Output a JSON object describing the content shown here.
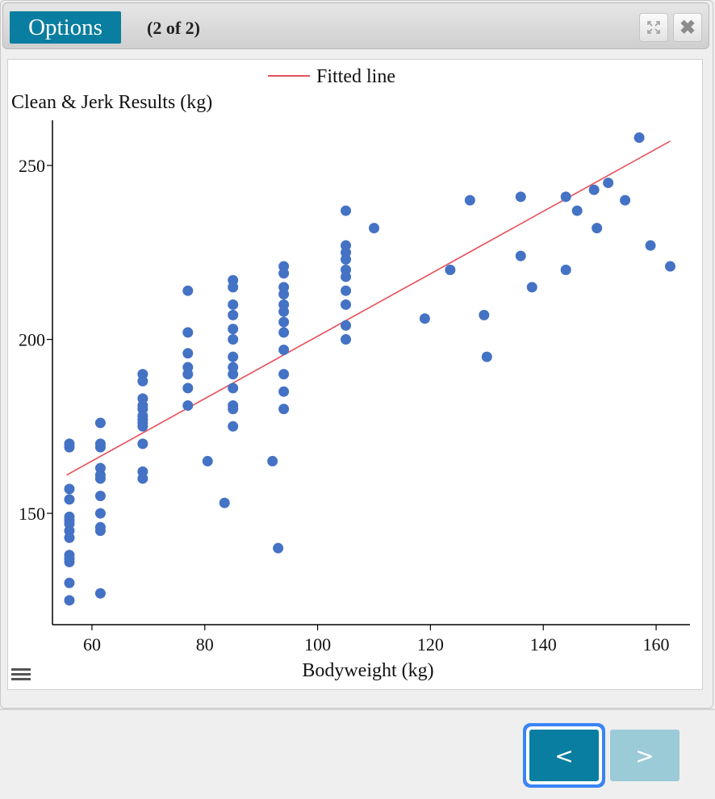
{
  "header": {
    "options_label": "Options",
    "page_count": "(2 of 2)"
  },
  "nav": {
    "prev_label": "<",
    "next_label": ">"
  },
  "colors": {
    "accent": "#0a7ea0",
    "accent_disabled": "#9ccbd8",
    "points": "#4472c4",
    "fit_line": "#e8505b"
  },
  "chart_data": {
    "type": "scatter",
    "title": "",
    "xlabel": "Bodyweight (kg)",
    "ylabel": "Clean & Jerk Results (kg)",
    "xlim": [
      53,
      166
    ],
    "ylim": [
      118,
      263
    ],
    "xticks": [
      60,
      80,
      100,
      120,
      140,
      160
    ],
    "yticks": [
      150,
      200,
      250
    ],
    "legend": {
      "placement": "top-center",
      "entries": [
        "Fitted line"
      ]
    },
    "grid": false,
    "series": [
      {
        "type": "scatter",
        "points": [
          [
            56,
            170
          ],
          [
            56,
            169
          ],
          [
            56,
            157
          ],
          [
            56,
            154
          ],
          [
            56,
            149
          ],
          [
            56,
            148
          ],
          [
            56,
            147
          ],
          [
            56,
            145
          ],
          [
            56,
            143
          ],
          [
            56,
            138
          ],
          [
            56,
            137
          ],
          [
            56,
            136
          ],
          [
            56,
            130
          ],
          [
            56,
            125
          ],
          [
            61.5,
            176
          ],
          [
            61.5,
            170
          ],
          [
            61.5,
            169
          ],
          [
            61.5,
            163
          ],
          [
            61.5,
            161
          ],
          [
            61.5,
            160
          ],
          [
            61.5,
            155
          ],
          [
            61.5,
            150
          ],
          [
            61.5,
            146
          ],
          [
            61.5,
            145
          ],
          [
            61.5,
            127
          ],
          [
            69,
            190
          ],
          [
            69,
            188
          ],
          [
            69,
            183
          ],
          [
            69,
            181
          ],
          [
            69,
            180
          ],
          [
            69,
            178
          ],
          [
            69,
            177
          ],
          [
            69,
            176
          ],
          [
            69,
            175
          ],
          [
            69,
            170
          ],
          [
            69,
            162
          ],
          [
            69,
            160
          ],
          [
            77,
            214
          ],
          [
            77,
            202
          ],
          [
            77,
            196
          ],
          [
            77,
            192
          ],
          [
            77,
            190
          ],
          [
            77,
            186
          ],
          [
            77,
            181
          ],
          [
            80.5,
            165
          ],
          [
            83.5,
            153
          ],
          [
            85,
            217
          ],
          [
            85,
            215
          ],
          [
            85,
            210
          ],
          [
            85,
            207
          ],
          [
            85,
            203
          ],
          [
            85,
            200
          ],
          [
            85,
            195
          ],
          [
            85,
            192
          ],
          [
            85,
            190
          ],
          [
            85,
            186
          ],
          [
            85,
            181
          ],
          [
            85,
            180
          ],
          [
            85,
            175
          ],
          [
            92,
            165
          ],
          [
            93,
            140
          ],
          [
            94,
            221
          ],
          [
            94,
            219
          ],
          [
            94,
            215
          ],
          [
            94,
            213
          ],
          [
            94,
            210
          ],
          [
            94,
            208
          ],
          [
            94,
            205
          ],
          [
            94,
            202
          ],
          [
            94,
            197
          ],
          [
            94,
            190
          ],
          [
            94,
            185
          ],
          [
            94,
            180
          ],
          [
            105,
            237
          ],
          [
            105,
            227
          ],
          [
            105,
            225
          ],
          [
            105,
            223
          ],
          [
            105,
            220
          ],
          [
            105,
            218
          ],
          [
            105,
            214
          ],
          [
            105,
            210
          ],
          [
            105,
            204
          ],
          [
            105,
            200
          ],
          [
            110,
            232
          ],
          [
            119,
            206
          ],
          [
            123.5,
            220
          ],
          [
            127,
            240
          ],
          [
            129.5,
            207
          ],
          [
            130,
            195
          ],
          [
            136,
            241
          ],
          [
            136,
            224
          ],
          [
            138,
            215
          ],
          [
            144,
            241
          ],
          [
            144,
            220
          ],
          [
            146,
            237
          ],
          [
            149,
            243
          ],
          [
            149.5,
            232
          ],
          [
            151.5,
            245
          ],
          [
            154.5,
            240
          ],
          [
            157,
            258
          ],
          [
            159,
            227
          ],
          [
            162.5,
            221
          ]
        ]
      },
      {
        "type": "line",
        "name": "Fitted line",
        "points": [
          [
            55.5,
            161
          ],
          [
            162.5,
            257
          ]
        ]
      }
    ]
  }
}
